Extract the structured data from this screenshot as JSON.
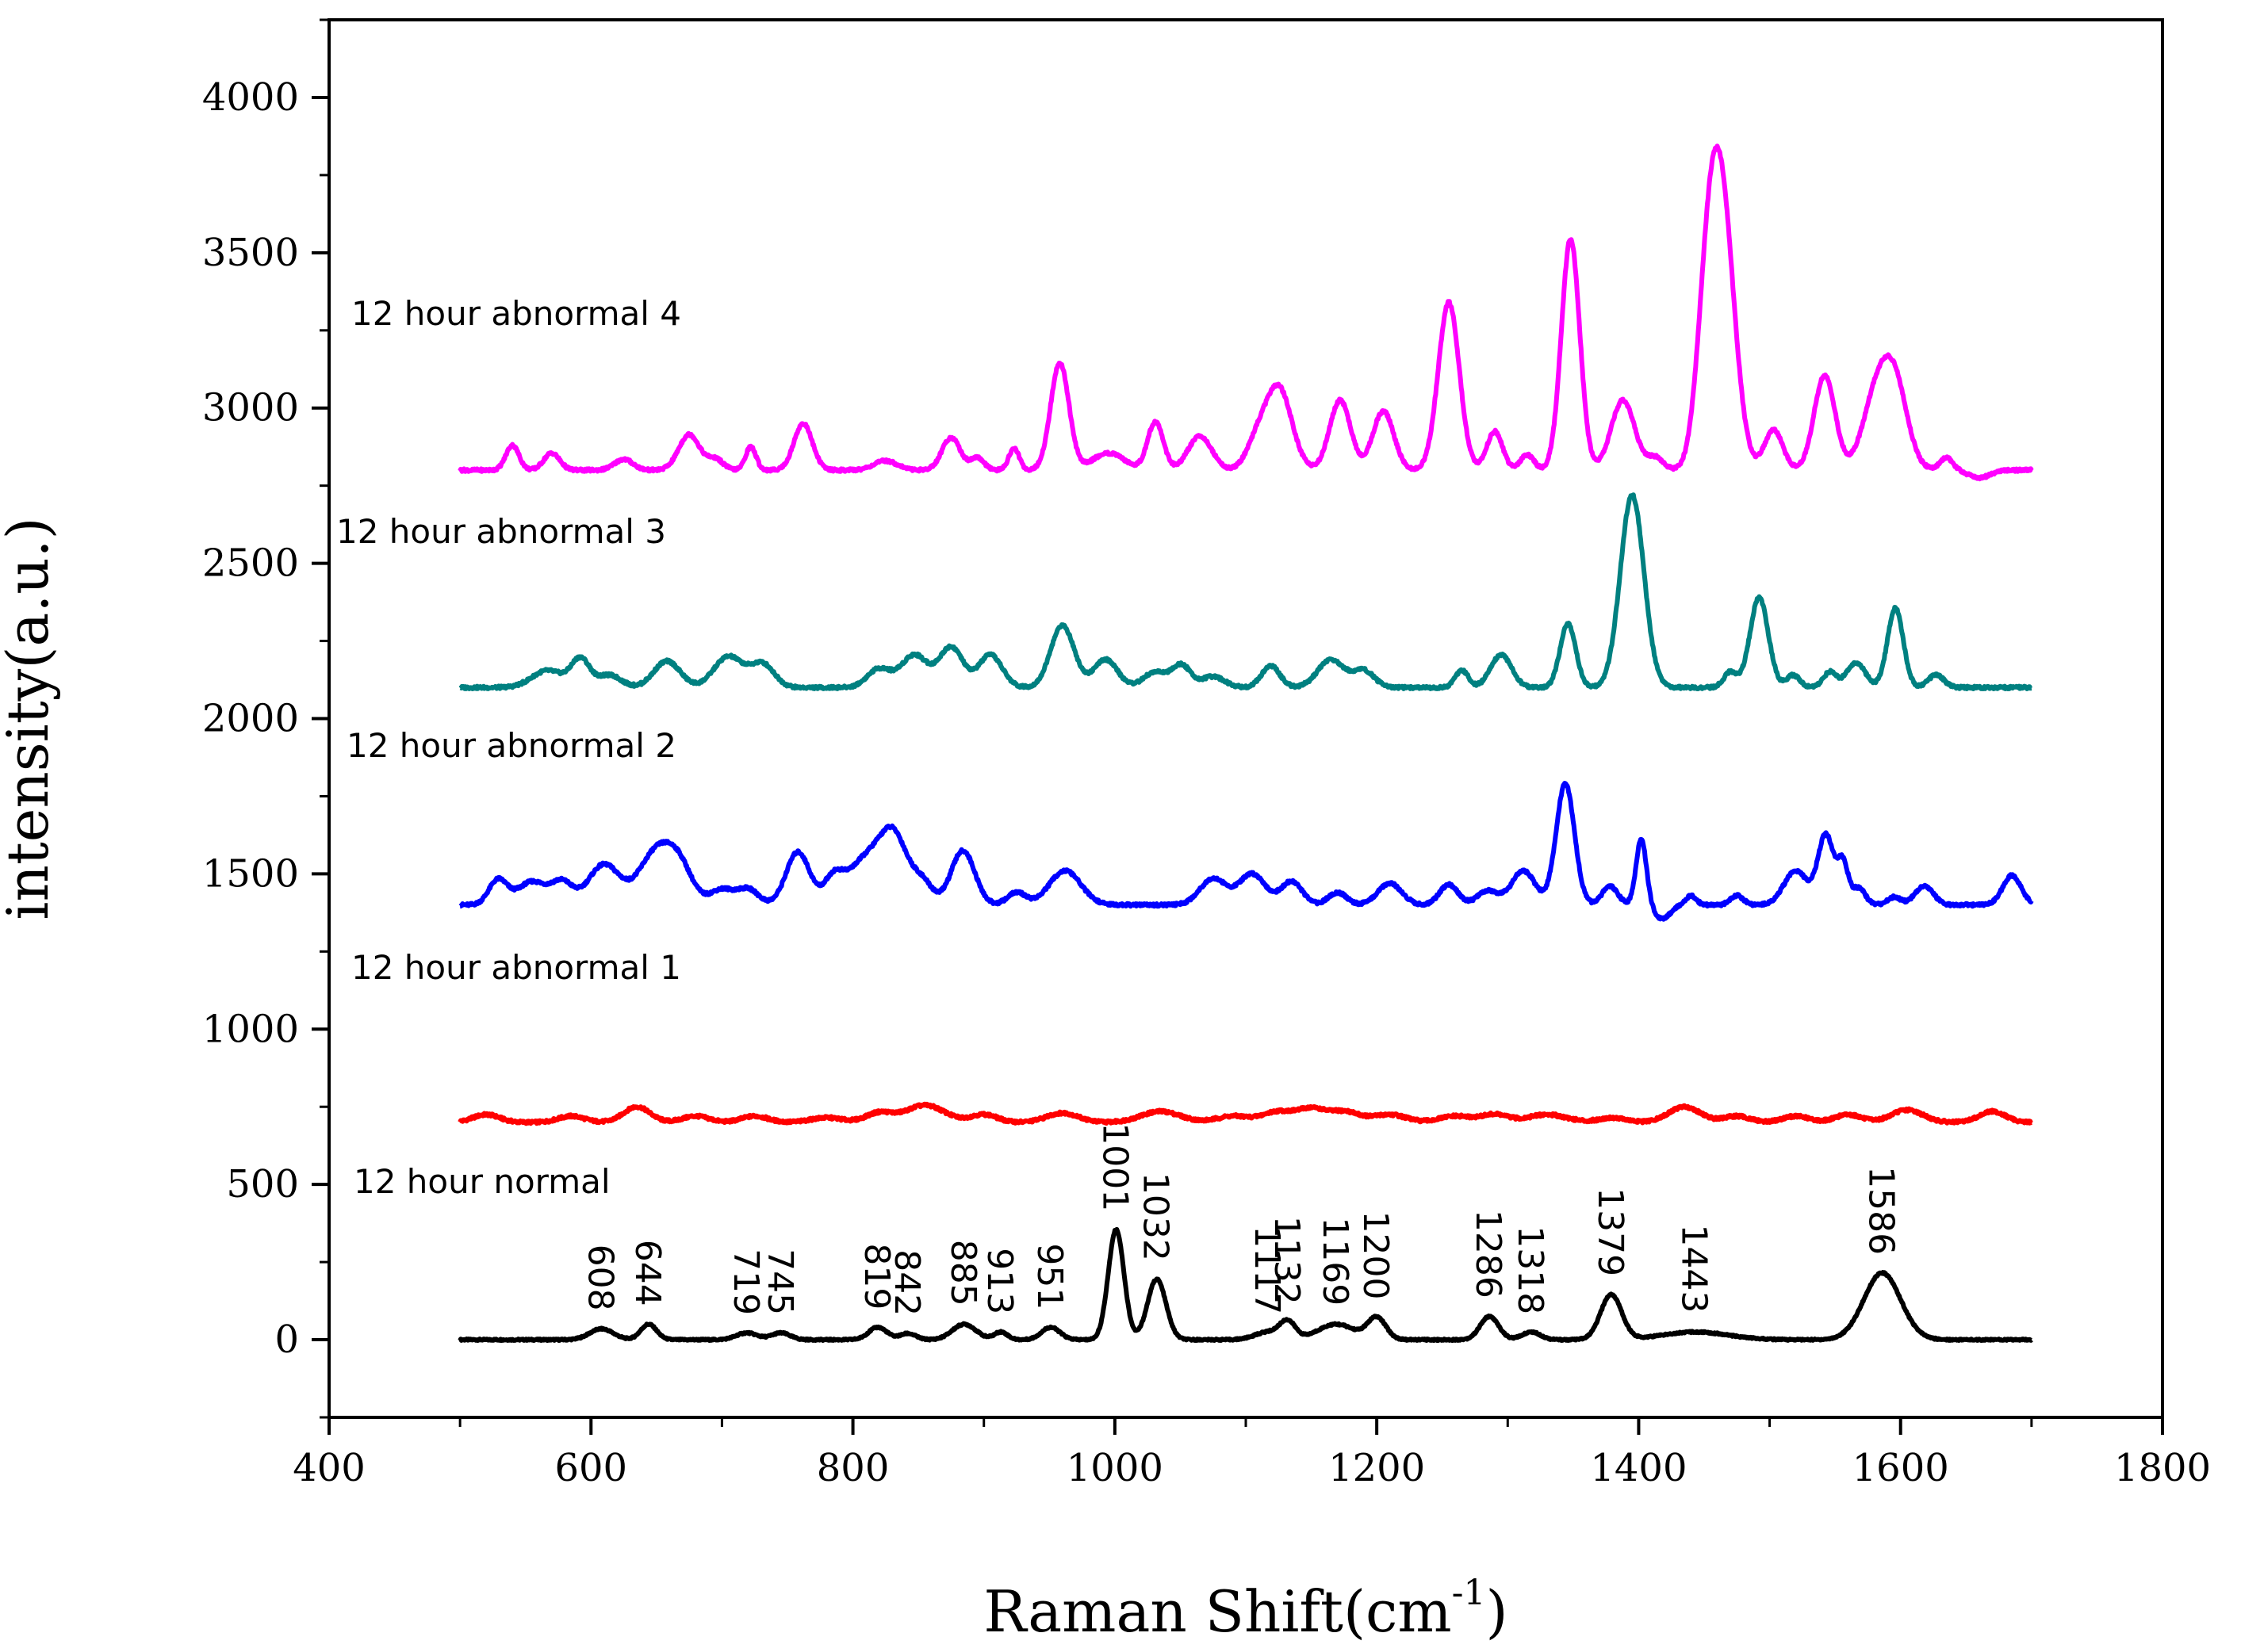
{
  "chart_data": {
    "type": "line",
    "title": "",
    "xlabel": "Raman Shift(cm",
    "xlabel_sup": "-1",
    "xlabel_close": ")",
    "ylabel": "intensity(a.u.)",
    "xlim": [
      400,
      1800
    ],
    "ylim": [
      -250,
      4250
    ],
    "x_ticks": [
      400,
      600,
      800,
      1000,
      1200,
      1400,
      1600,
      1800
    ],
    "x_tick_labels": [
      "400",
      "600",
      "800",
      "1000",
      "1200",
      "1400",
      "1600",
      "1800"
    ],
    "y_ticks": [
      0,
      500,
      1000,
      1500,
      2000,
      2500,
      3000,
      3500,
      4000
    ],
    "y_tick_labels": [
      "0",
      "500",
      "1000",
      "1500",
      "2000",
      "2500",
      "3000",
      "3500",
      "4000"
    ],
    "x_range": [
      500,
      1700
    ],
    "series": [
      {
        "name": "12 hour normal",
        "color": "#000000",
        "baseline": 0,
        "peaks": [
          [
            608,
            35,
            9
          ],
          [
            644,
            50,
            6
          ],
          [
            719,
            22,
            8
          ],
          [
            745,
            22,
            7
          ],
          [
            819,
            40,
            7
          ],
          [
            842,
            20,
            6
          ],
          [
            885,
            50,
            9
          ],
          [
            913,
            25,
            5
          ],
          [
            951,
            40,
            7
          ],
          [
            1001,
            355,
            6
          ],
          [
            1032,
            195,
            7
          ],
          [
            1117,
            25,
            10
          ],
          [
            1132,
            55,
            6
          ],
          [
            1169,
            50,
            14
          ],
          [
            1200,
            70,
            7
          ],
          [
            1286,
            75,
            7
          ],
          [
            1318,
            25,
            7
          ],
          [
            1379,
            145,
            8
          ],
          [
            1443,
            25,
            25
          ],
          [
            1586,
            215,
            14
          ]
        ]
      },
      {
        "name": "12 hour abnormal 1",
        "color": "#ff0000",
        "baseline": 700,
        "peaks": [
          [
            520,
            25,
            10
          ],
          [
            585,
            20,
            10
          ],
          [
            635,
            50,
            10
          ],
          [
            680,
            20,
            10
          ],
          [
            725,
            20,
            10
          ],
          [
            780,
            15,
            12
          ],
          [
            820,
            30,
            10
          ],
          [
            855,
            55,
            15
          ],
          [
            900,
            25,
            10
          ],
          [
            960,
            30,
            12
          ],
          [
            1035,
            35,
            15
          ],
          [
            1090,
            20,
            12
          ],
          [
            1125,
            35,
            12
          ],
          [
            1150,
            40,
            10
          ],
          [
            1175,
            35,
            12
          ],
          [
            1210,
            25,
            12
          ],
          [
            1260,
            20,
            12
          ],
          [
            1290,
            25,
            10
          ],
          [
            1330,
            25,
            15
          ],
          [
            1380,
            15,
            10
          ],
          [
            1435,
            50,
            12
          ],
          [
            1475,
            20,
            10
          ],
          [
            1520,
            20,
            10
          ],
          [
            1560,
            25,
            10
          ],
          [
            1605,
            40,
            12
          ],
          [
            1670,
            35,
            10
          ]
        ]
      },
      {
        "name": "12 hour abnormal 2",
        "color": "#0000ff",
        "baseline": 1400,
        "peaks": [
          [
            529,
            80,
            7
          ],
          [
            555,
            75,
            11
          ],
          [
            578,
            70,
            8
          ],
          [
            610,
            130,
            12
          ],
          [
            650,
            170,
            13
          ],
          [
            668,
            100,
            10
          ],
          [
            700,
            50,
            9
          ],
          [
            720,
            50,
            8
          ],
          [
            758,
            170,
            9
          ],
          [
            785,
            70,
            7
          ],
          [
            812,
            155,
            16
          ],
          [
            832,
            170,
            10
          ],
          [
            853,
            70,
            8
          ],
          [
            884,
            175,
            9
          ],
          [
            925,
            40,
            7
          ],
          [
            962,
            110,
            12
          ],
          [
            1075,
            85,
            10
          ],
          [
            1105,
            100,
            10
          ],
          [
            1135,
            75,
            8
          ],
          [
            1170,
            40,
            7
          ],
          [
            1210,
            70,
            9
          ],
          [
            1255,
            65,
            7
          ],
          [
            1285,
            45,
            8
          ],
          [
            1312,
            110,
            9
          ],
          [
            1344,
            390,
            7
          ],
          [
            1378,
            60,
            6
          ],
          [
            1402,
            210,
            4
          ],
          [
            1418,
            -45,
            6
          ],
          [
            1440,
            30,
            4
          ],
          [
            1475,
            30,
            5
          ],
          [
            1520,
            110,
            9
          ],
          [
            1543,
            225,
            6
          ],
          [
            1556,
            130,
            4
          ],
          [
            1568,
            55,
            5
          ],
          [
            1595,
            25,
            5
          ],
          [
            1618,
            60,
            7
          ],
          [
            1685,
            95,
            7
          ]
        ]
      },
      {
        "name": "12 hour abnormal 3",
        "color": "#008080",
        "baseline": 2100,
        "peaks": [
          [
            567,
            55,
            12
          ],
          [
            592,
            90,
            7
          ],
          [
            614,
            40,
            9
          ],
          [
            658,
            85,
            10
          ],
          [
            705,
            100,
            11
          ],
          [
            731,
            75,
            9
          ],
          [
            820,
            60,
            9
          ],
          [
            847,
            105,
            10
          ],
          [
            875,
            130,
            9
          ],
          [
            905,
            105,
            9
          ],
          [
            960,
            200,
            9
          ],
          [
            993,
            90,
            9
          ],
          [
            1031,
            50,
            9
          ],
          [
            1051,
            70,
            7
          ],
          [
            1075,
            35,
            9
          ],
          [
            1119,
            70,
            7
          ],
          [
            1165,
            90,
            10
          ],
          [
            1190,
            55,
            8
          ],
          [
            1265,
            55,
            5
          ],
          [
            1295,
            105,
            8
          ],
          [
            1346,
            205,
            6
          ],
          [
            1395,
            620,
            9
          ],
          [
            1470,
            50,
            5
          ],
          [
            1492,
            290,
            7
          ],
          [
            1518,
            40,
            5
          ],
          [
            1546,
            50,
            5
          ],
          [
            1566,
            80,
            7
          ],
          [
            1596,
            255,
            6
          ],
          [
            1627,
            40,
            6
          ]
        ]
      },
      {
        "name": "12 hour abnormal 4",
        "color": "#ff00ff",
        "baseline": 2800,
        "peaks": [
          [
            540,
            80,
            5
          ],
          [
            570,
            55,
            6
          ],
          [
            625,
            35,
            7
          ],
          [
            675,
            115,
            8
          ],
          [
            695,
            35,
            6
          ],
          [
            722,
            75,
            4
          ],
          [
            762,
            150,
            7
          ],
          [
            825,
            30,
            9
          ],
          [
            875,
            105,
            7
          ],
          [
            895,
            40,
            5
          ],
          [
            923,
            70,
            4
          ],
          [
            958,
            345,
            7
          ],
          [
            995,
            55,
            12
          ],
          [
            1031,
            155,
            6
          ],
          [
            1065,
            110,
            9
          ],
          [
            1108,
            80,
            8
          ],
          [
            1125,
            265,
            10
          ],
          [
            1172,
            225,
            8
          ],
          [
            1205,
            190,
            8
          ],
          [
            1255,
            540,
            8
          ],
          [
            1290,
            125,
            6
          ],
          [
            1315,
            50,
            5
          ],
          [
            1348,
            745,
            7
          ],
          [
            1388,
            225,
            9
          ],
          [
            1413,
            40,
            6
          ],
          [
            1452,
            360,
            8
          ],
          [
            1463,
            860,
            10
          ],
          [
            1503,
            130,
            7
          ],
          [
            1542,
            305,
            8
          ],
          [
            1580,
            200,
            10
          ],
          [
            1595,
            280,
            10
          ],
          [
            1635,
            40,
            5
          ],
          [
            1660,
            -25,
            8
          ]
        ]
      }
    ],
    "annotations": [
      {
        "text": "608",
        "x": 608,
        "y": 42
      },
      {
        "text": "644",
        "x": 644,
        "y": 57
      },
      {
        "text": "719",
        "x": 719,
        "y": 28
      },
      {
        "text": "745",
        "x": 745,
        "y": 28
      },
      {
        "text": "819",
        "x": 819,
        "y": 45
      },
      {
        "text": "842",
        "x": 842,
        "y": 25
      },
      {
        "text": "885",
        "x": 885,
        "y": 57
      },
      {
        "text": "913",
        "x": 913,
        "y": 30
      },
      {
        "text": "951",
        "x": 951,
        "y": 45
      },
      {
        "text": "1001",
        "x": 1001,
        "y": 362
      },
      {
        "text": "1032",
        "x": 1032,
        "y": 202
      },
      {
        "text": "1117",
        "x": 1117,
        "y": 30
      },
      {
        "text": "1132",
        "x": 1132,
        "y": 62
      },
      {
        "text": "1169",
        "x": 1169,
        "y": 58
      },
      {
        "text": "1200",
        "x": 1200,
        "y": 78
      },
      {
        "text": "1286",
        "x": 1286,
        "y": 82
      },
      {
        "text": "1318",
        "x": 1318,
        "y": 30
      },
      {
        "text": "1379",
        "x": 1379,
        "y": 153
      },
      {
        "text": "1443",
        "x": 1443,
        "y": 35
      },
      {
        "text": "1586",
        "x": 1586,
        "y": 222
      }
    ]
  }
}
